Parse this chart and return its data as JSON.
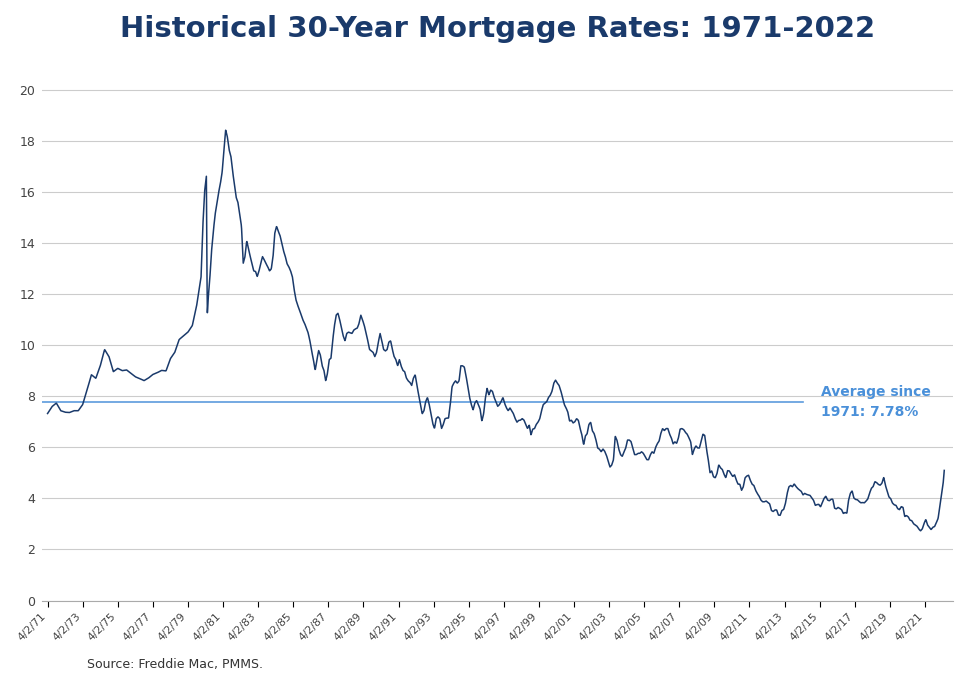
{
  "title": "Historical 30-Year Mortgage Rates: 1971-2022",
  "title_color": "#1a3a6b",
  "title_fontsize": 21,
  "line_color": "#1a3a6b",
  "avg_line_color": "#4a90d9",
  "avg_label": "Average since\n1971: 7.78%",
  "avg_label_color": "#4a90d9",
  "avg_value": 7.78,
  "source_text": "Source: Freddie Mac, PMMS.",
  "ylim": [
    0,
    21
  ],
  "yticks": [
    0,
    2,
    4,
    6,
    8,
    10,
    12,
    14,
    16,
    18,
    20
  ],
  "background_color": "#ffffff",
  "grid_color": "#cccccc",
  "x_tick_years": [
    1971,
    1973,
    1975,
    1977,
    1979,
    1981,
    1983,
    1985,
    1987,
    1989,
    1991,
    1993,
    1995,
    1997,
    1999,
    2001,
    2003,
    2005,
    2007,
    2009,
    2011,
    2013,
    2015,
    2017,
    2019,
    2021
  ],
  "x_labels": [
    "4/2/71",
    "4/2/73",
    "4/2/75",
    "4/2/77",
    "4/2/79",
    "4/2/81",
    "4/2/83",
    "4/2/85",
    "4/2/87",
    "4/2/89",
    "4/2/91",
    "4/2/93",
    "4/2/95",
    "4/2/97",
    "4/2/99",
    "4/2/01",
    "4/2/03",
    "4/2/05",
    "4/2/07",
    "4/2/09",
    "4/2/11",
    "4/2/13",
    "4/2/15",
    "4/2/17",
    "4/2/19",
    "4/2/21"
  ],
  "keypoints": [
    [
      1971.25,
      7.33
    ],
    [
      1971.5,
      7.6
    ],
    [
      1971.75,
      7.74
    ],
    [
      1972.0,
      7.44
    ],
    [
      1972.25,
      7.38
    ],
    [
      1972.5,
      7.37
    ],
    [
      1972.75,
      7.44
    ],
    [
      1973.0,
      7.44
    ],
    [
      1973.25,
      7.68
    ],
    [
      1973.5,
      8.25
    ],
    [
      1973.75,
      8.85
    ],
    [
      1974.0,
      8.71
    ],
    [
      1974.25,
      9.19
    ],
    [
      1974.5,
      9.84
    ],
    [
      1974.75,
      9.56
    ],
    [
      1975.0,
      8.97
    ],
    [
      1975.25,
      9.1
    ],
    [
      1975.5,
      9.01
    ],
    [
      1975.75,
      9.04
    ],
    [
      1976.0,
      8.91
    ],
    [
      1976.25,
      8.77
    ],
    [
      1976.5,
      8.7
    ],
    [
      1976.75,
      8.62
    ],
    [
      1977.0,
      8.72
    ],
    [
      1977.25,
      8.86
    ],
    [
      1977.5,
      8.93
    ],
    [
      1977.75,
      9.02
    ],
    [
      1978.0,
      9.0
    ],
    [
      1978.25,
      9.48
    ],
    [
      1978.5,
      9.73
    ],
    [
      1978.75,
      10.23
    ],
    [
      1979.0,
      10.38
    ],
    [
      1979.25,
      10.52
    ],
    [
      1979.5,
      10.78
    ],
    [
      1979.75,
      11.58
    ],
    [
      1980.0,
      12.7
    ],
    [
      1980.1,
      14.7
    ],
    [
      1980.2,
      16.04
    ],
    [
      1980.3,
      16.63
    ],
    [
      1980.35,
      11.2
    ],
    [
      1980.4,
      11.8
    ],
    [
      1980.5,
      12.66
    ],
    [
      1980.6,
      13.74
    ],
    [
      1980.7,
      14.5
    ],
    [
      1980.8,
      15.14
    ],
    [
      1981.0,
      16.0
    ],
    [
      1981.1,
      16.35
    ],
    [
      1981.2,
      16.8
    ],
    [
      1981.3,
      17.66
    ],
    [
      1981.4,
      18.45
    ],
    [
      1981.5,
      18.16
    ],
    [
      1981.6,
      17.66
    ],
    [
      1981.7,
      17.4
    ],
    [
      1981.8,
      16.8
    ],
    [
      1981.9,
      16.3
    ],
    [
      1982.0,
      15.8
    ],
    [
      1982.1,
      15.6
    ],
    [
      1982.2,
      15.14
    ],
    [
      1982.3,
      14.67
    ],
    [
      1982.4,
      13.22
    ],
    [
      1982.5,
      13.48
    ],
    [
      1982.6,
      14.1
    ],
    [
      1982.7,
      13.8
    ],
    [
      1982.8,
      13.48
    ],
    [
      1982.9,
      13.2
    ],
    [
      1983.0,
      12.92
    ],
    [
      1983.1,
      12.9
    ],
    [
      1983.2,
      12.7
    ],
    [
      1983.3,
      12.92
    ],
    [
      1983.4,
      13.22
    ],
    [
      1983.5,
      13.48
    ],
    [
      1983.6,
      13.35
    ],
    [
      1983.7,
      13.2
    ],
    [
      1983.8,
      13.08
    ],
    [
      1983.9,
      12.92
    ],
    [
      1984.0,
      13.0
    ],
    [
      1984.1,
      13.48
    ],
    [
      1984.2,
      14.4
    ],
    [
      1984.3,
      14.67
    ],
    [
      1984.4,
      14.47
    ],
    [
      1984.5,
      14.3
    ],
    [
      1984.6,
      14.0
    ],
    [
      1984.7,
      13.7
    ],
    [
      1984.8,
      13.48
    ],
    [
      1984.9,
      13.2
    ],
    [
      1985.0,
      13.08
    ],
    [
      1985.1,
      12.92
    ],
    [
      1985.2,
      12.7
    ],
    [
      1985.3,
      12.2
    ],
    [
      1985.4,
      11.8
    ],
    [
      1985.5,
      11.58
    ],
    [
      1985.6,
      11.4
    ],
    [
      1985.7,
      11.2
    ],
    [
      1985.8,
      11.0
    ],
    [
      1985.9,
      10.86
    ],
    [
      1986.0,
      10.68
    ],
    [
      1986.1,
      10.49
    ],
    [
      1986.2,
      10.18
    ],
    [
      1986.3,
      9.78
    ],
    [
      1986.4,
      9.44
    ],
    [
      1986.5,
      9.02
    ],
    [
      1986.6,
      9.44
    ],
    [
      1986.7,
      9.8
    ],
    [
      1986.8,
      9.61
    ],
    [
      1986.9,
      9.2
    ],
    [
      1987.0,
      9.02
    ],
    [
      1987.1,
      8.61
    ],
    [
      1987.2,
      8.9
    ],
    [
      1987.3,
      9.44
    ],
    [
      1987.4,
      9.5
    ],
    [
      1987.5,
      10.2
    ],
    [
      1987.6,
      10.78
    ],
    [
      1987.7,
      11.19
    ],
    [
      1987.8,
      11.26
    ],
    [
      1987.9,
      11.0
    ],
    [
      1988.0,
      10.68
    ],
    [
      1988.1,
      10.37
    ],
    [
      1988.2,
      10.18
    ],
    [
      1988.3,
      10.47
    ],
    [
      1988.4,
      10.52
    ],
    [
      1988.5,
      10.49
    ],
    [
      1988.6,
      10.47
    ],
    [
      1988.7,
      10.6
    ],
    [
      1988.8,
      10.65
    ],
    [
      1988.9,
      10.68
    ],
    [
      1989.0,
      10.86
    ],
    [
      1989.1,
      11.19
    ],
    [
      1989.2,
      11.0
    ],
    [
      1989.3,
      10.78
    ],
    [
      1989.4,
      10.49
    ],
    [
      1989.5,
      10.18
    ],
    [
      1989.6,
      9.84
    ],
    [
      1989.7,
      9.78
    ],
    [
      1989.8,
      9.73
    ],
    [
      1989.9,
      9.56
    ],
    [
      1990.0,
      9.73
    ],
    [
      1990.1,
      10.13
    ],
    [
      1990.2,
      10.47
    ],
    [
      1990.3,
      10.18
    ],
    [
      1990.4,
      9.84
    ],
    [
      1990.5,
      9.78
    ],
    [
      1990.6,
      9.84
    ],
    [
      1990.7,
      10.13
    ],
    [
      1990.8,
      10.18
    ],
    [
      1990.9,
      9.84
    ],
    [
      1991.0,
      9.56
    ],
    [
      1991.1,
      9.44
    ],
    [
      1991.2,
      9.2
    ],
    [
      1991.3,
      9.44
    ],
    [
      1991.4,
      9.19
    ],
    [
      1991.5,
      9.02
    ],
    [
      1991.6,
      8.97
    ],
    [
      1991.7,
      8.72
    ],
    [
      1991.8,
      8.61
    ],
    [
      1991.9,
      8.55
    ],
    [
      1992.0,
      8.43
    ],
    [
      1992.1,
      8.72
    ],
    [
      1992.2,
      8.85
    ],
    [
      1992.3,
      8.43
    ],
    [
      1992.4,
      8.05
    ],
    [
      1992.5,
      7.68
    ],
    [
      1992.6,
      7.32
    ],
    [
      1992.7,
      7.44
    ],
    [
      1992.8,
      7.8
    ],
    [
      1992.9,
      7.96
    ],
    [
      1993.0,
      7.68
    ],
    [
      1993.1,
      7.32
    ],
    [
      1993.2,
      6.94
    ],
    [
      1993.3,
      6.74
    ],
    [
      1993.4,
      7.13
    ],
    [
      1993.5,
      7.2
    ],
    [
      1993.6,
      7.13
    ],
    [
      1993.7,
      6.74
    ],
    [
      1993.8,
      6.9
    ],
    [
      1993.9,
      7.13
    ],
    [
      1994.0,
      7.15
    ],
    [
      1994.1,
      7.15
    ],
    [
      1994.2,
      7.68
    ],
    [
      1994.3,
      8.38
    ],
    [
      1994.4,
      8.52
    ],
    [
      1994.5,
      8.61
    ],
    [
      1994.6,
      8.52
    ],
    [
      1994.7,
      8.61
    ],
    [
      1994.8,
      9.2
    ],
    [
      1994.9,
      9.2
    ],
    [
      1995.0,
      9.15
    ],
    [
      1995.1,
      8.8
    ],
    [
      1995.2,
      8.38
    ],
    [
      1995.3,
      7.96
    ],
    [
      1995.4,
      7.68
    ],
    [
      1995.5,
      7.47
    ],
    [
      1995.6,
      7.74
    ],
    [
      1995.7,
      7.84
    ],
    [
      1995.8,
      7.68
    ],
    [
      1995.9,
      7.5
    ],
    [
      1996.0,
      7.03
    ],
    [
      1996.1,
      7.32
    ],
    [
      1996.2,
      7.93
    ],
    [
      1996.3,
      8.32
    ],
    [
      1996.4,
      8.05
    ],
    [
      1996.5,
      8.25
    ],
    [
      1996.6,
      8.2
    ],
    [
      1996.7,
      7.96
    ],
    [
      1996.8,
      7.8
    ],
    [
      1996.9,
      7.61
    ],
    [
      1997.0,
      7.68
    ],
    [
      1997.1,
      7.8
    ],
    [
      1997.2,
      7.96
    ],
    [
      1997.3,
      7.72
    ],
    [
      1997.4,
      7.55
    ],
    [
      1997.5,
      7.44
    ],
    [
      1997.6,
      7.55
    ],
    [
      1997.7,
      7.44
    ],
    [
      1997.8,
      7.32
    ],
    [
      1997.9,
      7.13
    ],
    [
      1998.0,
      6.99
    ],
    [
      1998.1,
      7.06
    ],
    [
      1998.2,
      7.07
    ],
    [
      1998.3,
      7.13
    ],
    [
      1998.4,
      7.07
    ],
    [
      1998.5,
      6.9
    ],
    [
      1998.6,
      6.74
    ],
    [
      1998.7,
      6.88
    ],
    [
      1998.8,
      6.49
    ],
    [
      1998.9,
      6.72
    ],
    [
      1999.0,
      6.74
    ],
    [
      1999.1,
      6.9
    ],
    [
      1999.2,
      6.99
    ],
    [
      1999.3,
      7.13
    ],
    [
      1999.4,
      7.44
    ],
    [
      1999.5,
      7.68
    ],
    [
      1999.6,
      7.74
    ],
    [
      1999.7,
      7.8
    ],
    [
      1999.8,
      7.96
    ],
    [
      1999.9,
      8.05
    ],
    [
      2000.0,
      8.21
    ],
    [
      2000.1,
      8.52
    ],
    [
      2000.2,
      8.64
    ],
    [
      2000.3,
      8.52
    ],
    [
      2000.4,
      8.43
    ],
    [
      2000.5,
      8.22
    ],
    [
      2000.6,
      7.96
    ],
    [
      2000.7,
      7.68
    ],
    [
      2000.8,
      7.55
    ],
    [
      2000.9,
      7.38
    ],
    [
      2001.0,
      7.03
    ],
    [
      2001.1,
      7.07
    ],
    [
      2001.2,
      6.96
    ],
    [
      2001.3,
      7.01
    ],
    [
      2001.4,
      7.13
    ],
    [
      2001.5,
      7.06
    ],
    [
      2001.6,
      6.74
    ],
    [
      2001.7,
      6.49
    ],
    [
      2001.8,
      6.1
    ],
    [
      2001.9,
      6.45
    ],
    [
      2002.0,
      6.54
    ],
    [
      2002.1,
      6.9
    ],
    [
      2002.2,
      6.99
    ],
    [
      2002.3,
      6.65
    ],
    [
      2002.4,
      6.54
    ],
    [
      2002.5,
      6.3
    ],
    [
      2002.6,
      5.98
    ],
    [
      2002.7,
      5.93
    ],
    [
      2002.8,
      5.83
    ],
    [
      2002.9,
      5.94
    ],
    [
      2003.0,
      5.85
    ],
    [
      2003.1,
      5.69
    ],
    [
      2003.2,
      5.47
    ],
    [
      2003.3,
      5.23
    ],
    [
      2003.4,
      5.31
    ],
    [
      2003.5,
      5.52
    ],
    [
      2003.6,
      6.44
    ],
    [
      2003.7,
      6.28
    ],
    [
      2003.8,
      5.94
    ],
    [
      2003.9,
      5.72
    ],
    [
      2004.0,
      5.65
    ],
    [
      2004.1,
      5.83
    ],
    [
      2004.2,
      5.98
    ],
    [
      2004.3,
      6.29
    ],
    [
      2004.4,
      6.29
    ],
    [
      2004.5,
      6.23
    ],
    [
      2004.6,
      5.98
    ],
    [
      2004.7,
      5.72
    ],
    [
      2004.8,
      5.72
    ],
    [
      2004.9,
      5.77
    ],
    [
      2005.0,
      5.77
    ],
    [
      2005.1,
      5.83
    ],
    [
      2005.2,
      5.77
    ],
    [
      2005.3,
      5.65
    ],
    [
      2005.4,
      5.52
    ],
    [
      2005.5,
      5.52
    ],
    [
      2005.6,
      5.71
    ],
    [
      2005.7,
      5.83
    ],
    [
      2005.8,
      5.77
    ],
    [
      2005.9,
      6.0
    ],
    [
      2006.0,
      6.15
    ],
    [
      2006.1,
      6.25
    ],
    [
      2006.2,
      6.55
    ],
    [
      2006.3,
      6.74
    ],
    [
      2006.4,
      6.66
    ],
    [
      2006.5,
      6.74
    ],
    [
      2006.6,
      6.74
    ],
    [
      2006.7,
      6.52
    ],
    [
      2006.8,
      6.37
    ],
    [
      2006.9,
      6.14
    ],
    [
      2007.0,
      6.22
    ],
    [
      2007.1,
      6.16
    ],
    [
      2007.2,
      6.37
    ],
    [
      2007.3,
      6.72
    ],
    [
      2007.4,
      6.74
    ],
    [
      2007.5,
      6.7
    ],
    [
      2007.6,
      6.59
    ],
    [
      2007.7,
      6.52
    ],
    [
      2007.8,
      6.38
    ],
    [
      2007.9,
      6.22
    ],
    [
      2008.0,
      5.72
    ],
    [
      2008.1,
      5.94
    ],
    [
      2008.2,
      6.06
    ],
    [
      2008.3,
      5.98
    ],
    [
      2008.4,
      5.98
    ],
    [
      2008.5,
      6.26
    ],
    [
      2008.6,
      6.52
    ],
    [
      2008.7,
      6.47
    ],
    [
      2008.8,
      5.94
    ],
    [
      2008.9,
      5.53
    ],
    [
      2009.0,
      5.01
    ],
    [
      2009.1,
      5.08
    ],
    [
      2009.2,
      4.85
    ],
    [
      2009.3,
      4.81
    ],
    [
      2009.4,
      4.98
    ],
    [
      2009.5,
      5.32
    ],
    [
      2009.6,
      5.2
    ],
    [
      2009.7,
      5.14
    ],
    [
      2009.8,
      4.95
    ],
    [
      2009.9,
      4.81
    ],
    [
      2010.0,
      5.09
    ],
    [
      2010.1,
      5.08
    ],
    [
      2010.2,
      4.96
    ],
    [
      2010.3,
      4.86
    ],
    [
      2010.4,
      4.93
    ],
    [
      2010.5,
      4.72
    ],
    [
      2010.6,
      4.56
    ],
    [
      2010.7,
      4.56
    ],
    [
      2010.8,
      4.32
    ],
    [
      2010.9,
      4.46
    ],
    [
      2011.0,
      4.81
    ],
    [
      2011.1,
      4.88
    ],
    [
      2011.2,
      4.91
    ],
    [
      2011.3,
      4.71
    ],
    [
      2011.4,
      4.56
    ],
    [
      2011.5,
      4.51
    ],
    [
      2011.6,
      4.32
    ],
    [
      2011.7,
      4.19
    ],
    [
      2011.8,
      4.09
    ],
    [
      2011.9,
      3.94
    ],
    [
      2012.0,
      3.87
    ],
    [
      2012.1,
      3.87
    ],
    [
      2012.2,
      3.9
    ],
    [
      2012.3,
      3.84
    ],
    [
      2012.4,
      3.79
    ],
    [
      2012.5,
      3.53
    ],
    [
      2012.6,
      3.49
    ],
    [
      2012.7,
      3.55
    ],
    [
      2012.8,
      3.55
    ],
    [
      2012.9,
      3.35
    ],
    [
      2013.0,
      3.34
    ],
    [
      2013.1,
      3.53
    ],
    [
      2013.2,
      3.57
    ],
    [
      2013.3,
      3.81
    ],
    [
      2013.4,
      4.2
    ],
    [
      2013.5,
      4.46
    ],
    [
      2013.6,
      4.51
    ],
    [
      2013.7,
      4.46
    ],
    [
      2013.8,
      4.57
    ],
    [
      2013.9,
      4.47
    ],
    [
      2014.0,
      4.39
    ],
    [
      2014.1,
      4.33
    ],
    [
      2014.2,
      4.28
    ],
    [
      2014.3,
      4.14
    ],
    [
      2014.4,
      4.2
    ],
    [
      2014.5,
      4.16
    ],
    [
      2014.6,
      4.14
    ],
    [
      2014.7,
      4.12
    ],
    [
      2014.8,
      4.02
    ],
    [
      2014.9,
      3.93
    ],
    [
      2015.0,
      3.73
    ],
    [
      2015.1,
      3.76
    ],
    [
      2015.2,
      3.77
    ],
    [
      2015.3,
      3.67
    ],
    [
      2015.4,
      3.84
    ],
    [
      2015.5,
      4.0
    ],
    [
      2015.6,
      4.09
    ],
    [
      2015.7,
      3.94
    ],
    [
      2015.8,
      3.91
    ],
    [
      2015.9,
      3.97
    ],
    [
      2016.0,
      3.97
    ],
    [
      2016.1,
      3.62
    ],
    [
      2016.2,
      3.59
    ],
    [
      2016.3,
      3.65
    ],
    [
      2016.4,
      3.61
    ],
    [
      2016.5,
      3.56
    ],
    [
      2016.6,
      3.41
    ],
    [
      2016.7,
      3.45
    ],
    [
      2016.8,
      3.42
    ],
    [
      2016.9,
      3.94
    ],
    [
      2017.0,
      4.2
    ],
    [
      2017.1,
      4.3
    ],
    [
      2017.2,
      4.02
    ],
    [
      2017.3,
      3.96
    ],
    [
      2017.4,
      3.95
    ],
    [
      2017.5,
      3.88
    ],
    [
      2017.6,
      3.83
    ],
    [
      2017.7,
      3.84
    ],
    [
      2017.8,
      3.83
    ],
    [
      2017.9,
      3.9
    ],
    [
      2018.0,
      3.99
    ],
    [
      2018.1,
      4.22
    ],
    [
      2018.2,
      4.4
    ],
    [
      2018.3,
      4.47
    ],
    [
      2018.4,
      4.66
    ],
    [
      2018.5,
      4.62
    ],
    [
      2018.6,
      4.55
    ],
    [
      2018.7,
      4.52
    ],
    [
      2018.8,
      4.6
    ],
    [
      2018.9,
      4.83
    ],
    [
      2019.0,
      4.51
    ],
    [
      2019.1,
      4.28
    ],
    [
      2019.2,
      4.06
    ],
    [
      2019.3,
      3.99
    ],
    [
      2019.4,
      3.82
    ],
    [
      2019.5,
      3.75
    ],
    [
      2019.6,
      3.73
    ],
    [
      2019.7,
      3.6
    ],
    [
      2019.8,
      3.56
    ],
    [
      2019.9,
      3.68
    ],
    [
      2020.0,
      3.65
    ],
    [
      2020.1,
      3.29
    ],
    [
      2020.2,
      3.33
    ],
    [
      2020.3,
      3.28
    ],
    [
      2020.4,
      3.15
    ],
    [
      2020.5,
      3.13
    ],
    [
      2020.6,
      3.01
    ],
    [
      2020.7,
      2.96
    ],
    [
      2020.8,
      2.91
    ],
    [
      2020.9,
      2.8
    ],
    [
      2021.0,
      2.73
    ],
    [
      2021.1,
      2.81
    ],
    [
      2021.2,
      3.02
    ],
    [
      2021.3,
      3.18
    ],
    [
      2021.4,
      2.96
    ],
    [
      2021.5,
      2.87
    ],
    [
      2021.6,
      2.78
    ],
    [
      2021.7,
      2.87
    ],
    [
      2021.8,
      2.9
    ],
    [
      2021.9,
      3.05
    ],
    [
      2022.0,
      3.22
    ],
    [
      2022.1,
      3.69
    ],
    [
      2022.2,
      4.16
    ],
    [
      2022.3,
      4.67
    ],
    [
      2022.35,
      5.1
    ]
  ]
}
